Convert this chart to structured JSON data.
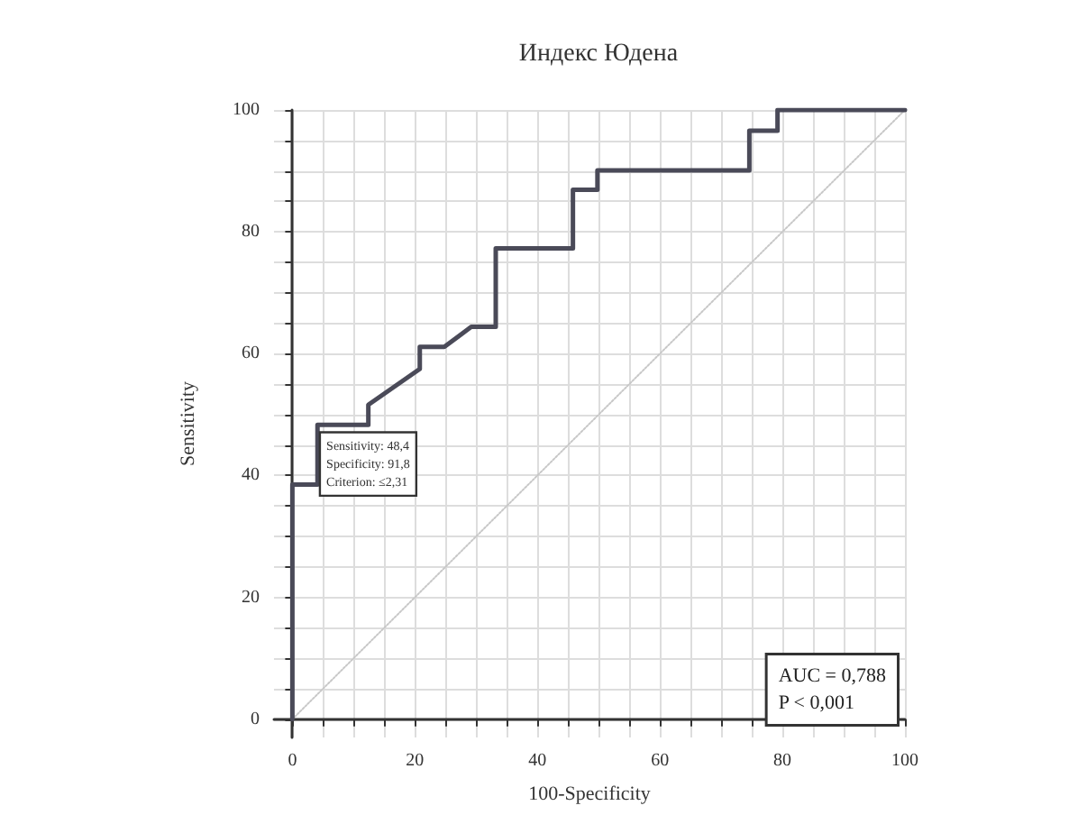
{
  "chart_data": {
    "type": "line",
    "title": "Индекс Юдена",
    "xlabel": "100-Specificity",
    "ylabel": "Sensitivity",
    "xlim": [
      -3,
      100
    ],
    "ylim": [
      -3,
      100
    ],
    "xticks": [
      0,
      {
        "value": 5,
        "label": null
      },
      {
        "value": 10,
        "label": null
      },
      {
        "value": 15,
        "label": null
      },
      20,
      {
        "value": 25,
        "label": null
      },
      {
        "value": 30,
        "label": null
      },
      {
        "value": 35,
        "label": null
      },
      40,
      {
        "value": 45,
        "label": null
      },
      {
        "value": 50,
        "label": null
      },
      {
        "value": 55,
        "label": null
      },
      60,
      {
        "value": 65,
        "label": null
      },
      {
        "value": 70,
        "label": null
      },
      {
        "value": 75,
        "label": null
      },
      80,
      {
        "value": 85,
        "label": null
      },
      {
        "value": 90,
        "label": null
      },
      {
        "value": 95,
        "label": null
      },
      100
    ],
    "yticks": [
      0,
      {
        "value": 5,
        "label": null
      },
      {
        "value": 10,
        "label": null
      },
      {
        "value": 15,
        "label": null
      },
      20,
      {
        "value": 25,
        "label": null
      },
      {
        "value": 30,
        "label": null
      },
      {
        "value": 35,
        "label": null
      },
      40,
      {
        "value": 45,
        "label": null
      },
      {
        "value": 50,
        "label": null
      },
      {
        "value": 55,
        "label": null
      },
      60,
      {
        "value": 65,
        "label": null
      },
      {
        "value": 70,
        "label": null
      },
      {
        "value": 75,
        "label": null
      },
      80,
      {
        "value": 85,
        "label": null
      },
      {
        "value": 90,
        "label": null
      },
      {
        "value": 95,
        "label": null
      },
      100
    ],
    "grid": true,
    "marker": "none",
    "series": [
      {
        "color": "#4a4a58",
        "line_style": "solid",
        "x": [
          0,
          0,
          4.1,
          4.1,
          12.4,
          12.4,
          20.8,
          20.8,
          24.8,
          29.2,
          33.2,
          33.2,
          45.8,
          45.8,
          49.8,
          49.8,
          74.6,
          74.6,
          79.2,
          79.2,
          100
        ],
        "values": [
          0,
          38.5,
          38.5,
          48.3,
          48.3,
          51.6,
          57.5,
          61.1,
          61.1,
          64.4,
          64.4,
          77.3,
          77.3,
          86.9,
          86.9,
          90.1,
          90.1,
          96.6,
          96.6,
          100,
          100
        ]
      },
      {
        "color": "#c8c8c8",
        "line_style": "dotted",
        "x": [
          0,
          100
        ],
        "values": [
          0,
          100
        ]
      }
    ],
    "annotations": [
      {
        "text": "Sensitivity: 48,4\nSpecificity: 91,8\nCriterion: ≤2,31",
        "x": 8.2,
        "y": 48.4
      },
      "AUC = 0,788\nP < 0,001"
    ]
  }
}
